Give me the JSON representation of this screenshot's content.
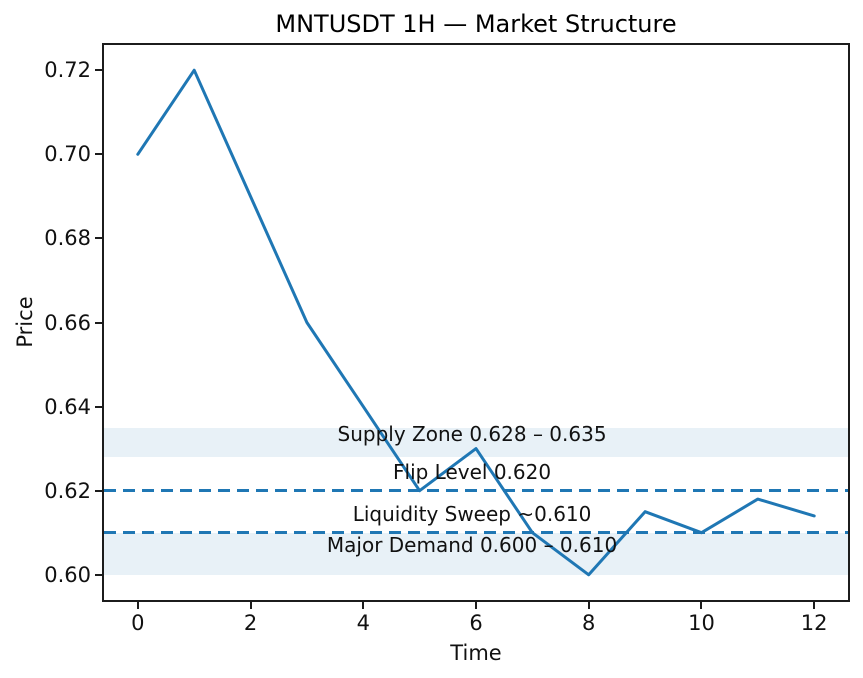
{
  "chart_data": {
    "type": "line",
    "title": "MNTUSDT 1H — Market Structure",
    "xlabel": "Time",
    "ylabel": "Price",
    "grid": false,
    "legend": null,
    "line_color": "#1f77b4",
    "x": [
      0,
      1,
      2,
      3,
      4,
      5,
      6,
      7,
      8,
      9,
      10,
      11,
      12
    ],
    "y": [
      0.7,
      0.72,
      0.69,
      0.66,
      0.64,
      0.62,
      0.63,
      0.61,
      0.6,
      0.615,
      0.61,
      0.618,
      0.614
    ],
    "xlim": [
      -0.6,
      12.6
    ],
    "ylim": [
      0.594,
      0.726
    ],
    "xticks": [
      0,
      2,
      4,
      6,
      8,
      10,
      12
    ],
    "xtick_labels": [
      "0",
      "2",
      "4",
      "6",
      "8",
      "10",
      "12"
    ],
    "yticks": [
      0.6,
      0.62,
      0.64,
      0.66,
      0.68,
      0.7,
      0.72
    ],
    "ytick_labels": [
      "0.60",
      "0.62",
      "0.64",
      "0.66",
      "0.68",
      "0.70",
      "0.72"
    ],
    "bands": [
      {
        "name": "supply-zone",
        "from": 0.628,
        "to": 0.635,
        "color": "#1f77b4",
        "alpha": 0.1
      },
      {
        "name": "major-demand-zone",
        "from": 0.6,
        "to": 0.61,
        "color": "#1f77b4",
        "alpha": 0.1
      }
    ],
    "hlines": [
      {
        "name": "flip-level-line",
        "y": 0.62,
        "style": "dashed",
        "color": "#1f77b4"
      },
      {
        "name": "liquidity-sweep-line",
        "y": 0.61,
        "style": "dashed",
        "color": "#1f77b4"
      }
    ],
    "annotations": [
      {
        "name": "supply-zone-label",
        "text": "Supply Zone 0.628 – 0.635",
        "x": 5.93,
        "y": 0.6335
      },
      {
        "name": "flip-level-label",
        "text": "Flip Level 0.620",
        "x": 5.93,
        "y": 0.6245
      },
      {
        "name": "liquidity-sweep-label",
        "text": "Liquidity Sweep ~0.610",
        "x": 5.93,
        "y": 0.6145
      },
      {
        "name": "major-demand-label",
        "text": "Major Demand 0.600 – 0.610",
        "x": 5.93,
        "y": 0.607
      }
    ]
  }
}
